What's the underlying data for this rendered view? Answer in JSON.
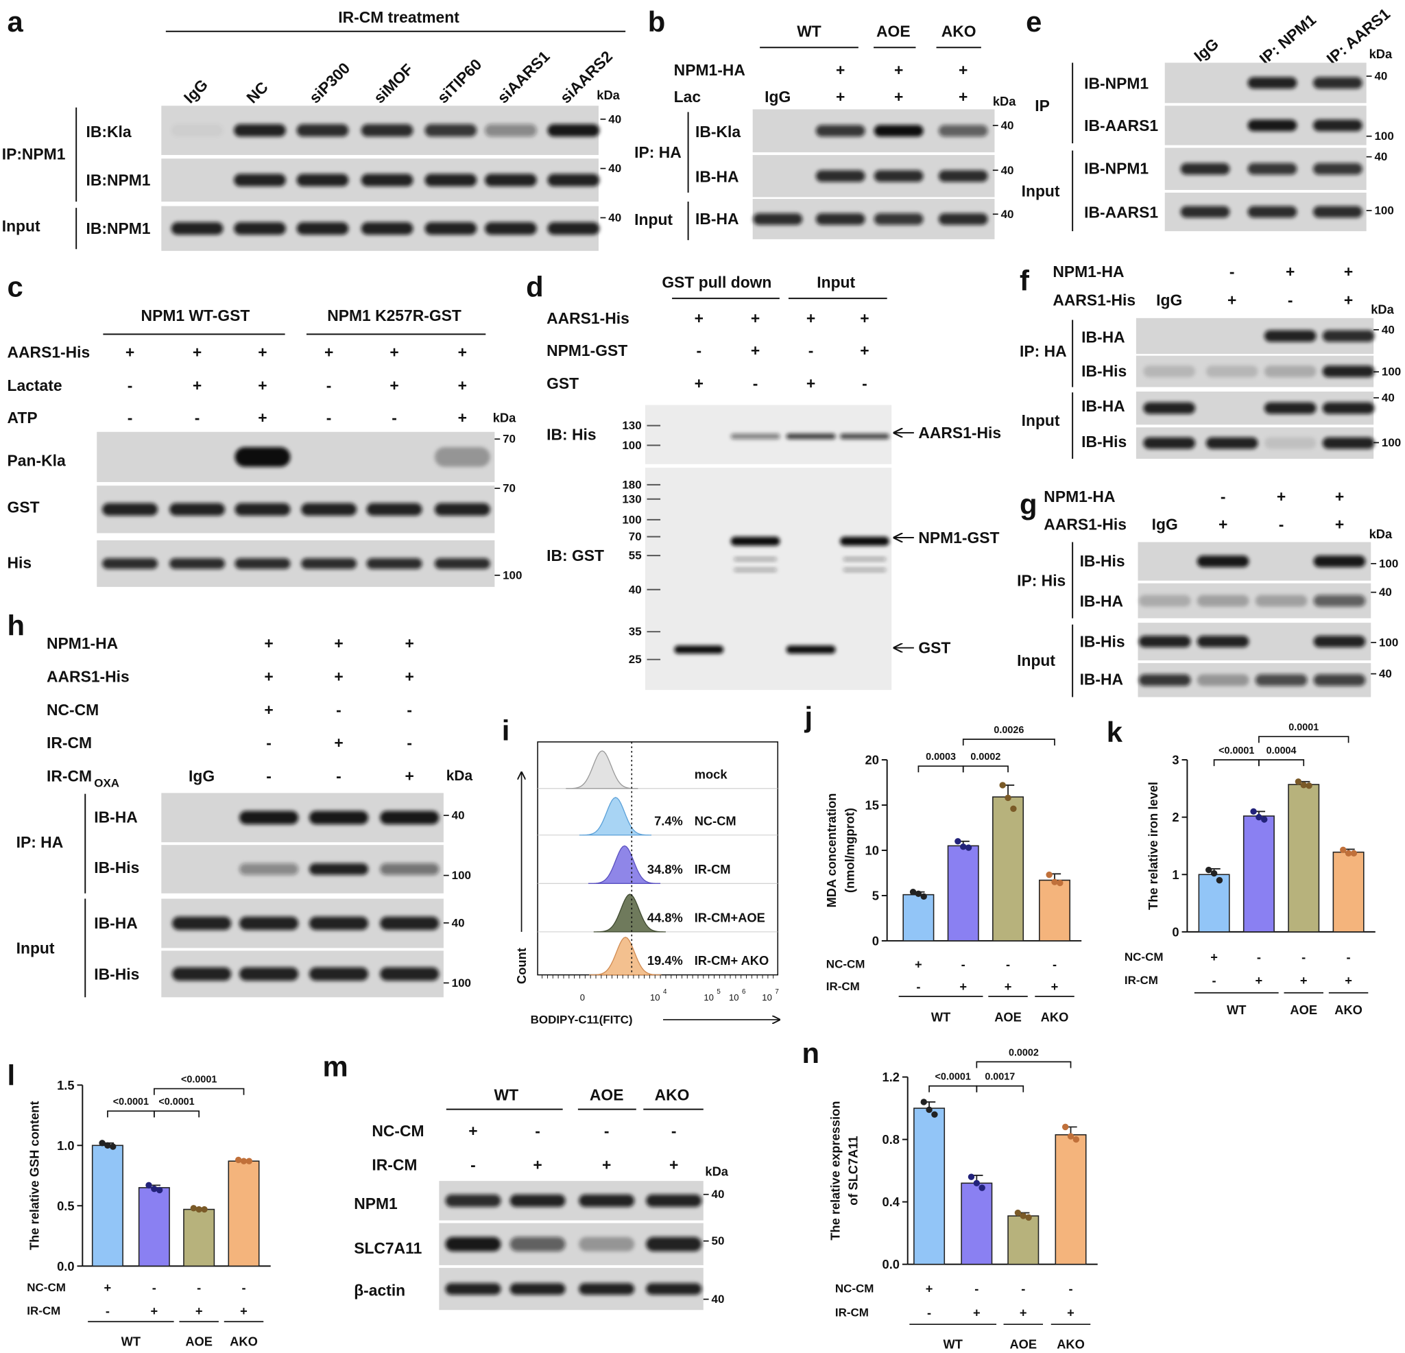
{
  "panels": {
    "a": {
      "letter": "a",
      "header": "IR-CM treatment",
      "lanes": [
        "IgG",
        "NC",
        "siP300",
        "siMOF",
        "siTIP60",
        "siAARS1",
        "siAARS2"
      ],
      "kda": "kDa",
      "ip": "IP:NPM1",
      "input": "Input",
      "rows": [
        "IB:Kla",
        "IB:NPM1",
        "IB:NPM1"
      ],
      "markers": [
        40,
        40,
        40
      ]
    },
    "b": {
      "letter": "b",
      "groups": [
        "WT",
        "AOE",
        "AKO"
      ],
      "conditions": [
        {
          "name": "NPM1-HA",
          "signs": [
            null,
            "+",
            "+",
            "+"
          ]
        },
        {
          "name": "Lac",
          "signs": [
            "IgG",
            "+",
            "+",
            "+"
          ]
        }
      ],
      "kda": "kDa",
      "ip": "IP: HA",
      "input": "Input",
      "rows": [
        "IB-Kla",
        "IB-HA",
        "IB-HA"
      ],
      "markers": [
        40,
        40,
        40
      ]
    },
    "e": {
      "letter": "e",
      "lanes": [
        "IgG",
        "IP: NPM1",
        "IP: AARS1"
      ],
      "kda": "kDa",
      "ip": "IP",
      "input": "Input",
      "rows": [
        "IB-NPM1",
        "IB-AARS1",
        "IB-NPM1",
        "IB-AARS1"
      ],
      "markers": [
        40,
        100,
        40,
        100
      ]
    },
    "c": {
      "letter": "c",
      "groups": [
        "NPM1 WT-GST",
        "NPM1 K257R-GST"
      ],
      "conditions": [
        {
          "name": "AARS1-His",
          "signs": [
            "+",
            "+",
            "+",
            "+",
            "+",
            "+"
          ]
        },
        {
          "name": "Lactate",
          "signs": [
            "-",
            "+",
            "+",
            "-",
            "+",
            "+"
          ]
        },
        {
          "name": "ATP",
          "signs": [
            "-",
            "-",
            "+",
            "-",
            "-",
            "+"
          ]
        }
      ],
      "kda": "kDa",
      "rows": [
        "Pan-Kla",
        "GST",
        "His"
      ],
      "markers": [
        70,
        70,
        100
      ]
    },
    "d": {
      "letter": "d",
      "groups": [
        "GST pull down",
        "Input"
      ],
      "conditions": [
        {
          "name": "AARS1-His",
          "signs": [
            "+",
            "+",
            "+",
            "+"
          ]
        },
        {
          "name": "NPM1-GST",
          "signs": [
            "-",
            "+",
            "-",
            "+"
          ]
        },
        {
          "name": "GST",
          "signs": [
            "+",
            "-",
            "+",
            "-"
          ]
        }
      ],
      "rows": [
        "IB: His",
        "IB: GST"
      ],
      "mw_his": [
        130,
        100
      ],
      "mw_gst": [
        180,
        130,
        100,
        70,
        55,
        40,
        35,
        25
      ],
      "arrows": [
        "AARS1-His",
        "NPM1-GST",
        "GST"
      ]
    },
    "f": {
      "letter": "f",
      "conditions": [
        {
          "name": "NPM1-HA",
          "signs": [
            null,
            "-",
            "+",
            "+"
          ]
        },
        {
          "name": "AARS1-His",
          "signs": [
            "IgG",
            "+",
            "-",
            "+"
          ]
        }
      ],
      "kda": "kDa",
      "ip": "IP: HA",
      "input": "Input",
      "rows": [
        "IB-HA",
        "IB-His",
        "IB-HA",
        "IB-His"
      ],
      "markers": [
        40,
        100,
        40,
        100
      ]
    },
    "g": {
      "letter": "g",
      "conditions": [
        {
          "name": "NPM1-HA",
          "signs": [
            null,
            "-",
            "+",
            "+"
          ]
        },
        {
          "name": "AARS1-His",
          "signs": [
            "IgG",
            "+",
            "-",
            "+"
          ]
        }
      ],
      "kda": "kDa",
      "ip": "IP: His",
      "input": "Input",
      "rows": [
        "IB-His",
        "IB-HA",
        "IB-His",
        "IB-HA"
      ],
      "markers": [
        100,
        40,
        100,
        40
      ]
    },
    "h": {
      "letter": "h",
      "conditions": [
        {
          "name": "NPM1-HA",
          "signs": [
            null,
            "+",
            "+",
            "+"
          ]
        },
        {
          "name": "AARS1-His",
          "signs": [
            null,
            "+",
            "+",
            "+"
          ]
        },
        {
          "name": "NC-CM",
          "signs": [
            null,
            "+",
            "-",
            "-"
          ]
        },
        {
          "name": "IR-CM",
          "signs": [
            null,
            "-",
            "+",
            "-"
          ]
        },
        {
          "name": "IR-CM",
          "sub": "OXA",
          "signs": [
            "IgG",
            "-",
            "-",
            "+"
          ]
        }
      ],
      "kda": "kDa",
      "ip": "IP: HA",
      "input": "Input",
      "rows": [
        "IB-HA",
        "IB-His",
        "IB-HA",
        "IB-His"
      ],
      "markers": [
        40,
        100,
        40,
        100
      ]
    },
    "m": {
      "letter": "m",
      "groups": [
        "WT",
        "AOE",
        "AKO"
      ],
      "conditions": [
        {
          "name": "NC-CM",
          "signs": [
            "+",
            "-",
            "-",
            "-"
          ]
        },
        {
          "name": "IR-CM",
          "signs": [
            "-",
            "+",
            "+",
            "+"
          ]
        }
      ],
      "kda": "kDa",
      "rows": [
        "NPM1",
        "SLC7A11",
        "β-actin"
      ],
      "markers": [
        40,
        50,
        40
      ]
    },
    "i": {
      "letter": "i",
      "samples": [
        {
          "name": "mock"
        },
        {
          "pct": "7.4%",
          "name": "NC-CM"
        },
        {
          "pct": "34.8%",
          "name": "IR-CM"
        },
        {
          "pct": "44.8%",
          "name": "IR-CM+AOE"
        },
        {
          "pct": "19.4%",
          "name": "IR-CM+ AKO"
        }
      ],
      "ylabel": "Count",
      "xlabel": "BODIPY-C11(FITC)",
      "xticks": [
        "0",
        {
          "base": "10",
          "exp": "4"
        },
        {
          "base": "10",
          "exp": "5"
        },
        {
          "base": "10",
          "exp": "6"
        },
        {
          "base": "10",
          "exp": "7"
        }
      ]
    }
  },
  "chart_data": [
    {
      "type": "bar",
      "letter": "j",
      "ylabel": [
        "MDA concentration",
        "(nmol/mgprot)"
      ],
      "values": [
        5.1,
        10.5,
        15.9,
        6.7
      ],
      "errors": [
        0.3,
        0.5,
        1.3,
        0.7
      ],
      "points": [
        [
          5.4,
          5.2,
          4.9
        ],
        [
          11.0,
          10.4,
          10.3
        ],
        [
          17.2,
          15.8,
          14.6
        ],
        [
          7.3,
          6.5,
          6.4
        ]
      ],
      "colors": [
        "#92c5f7",
        "#8a80f2",
        "#b7b27c",
        "#f4b47c"
      ],
      "point_colors": [
        "#222222",
        "#22227a",
        "#7a5a28",
        "#c0703a"
      ],
      "ylim": [
        0,
        20
      ],
      "yticks": [
        0,
        5,
        10,
        15,
        20
      ],
      "comparisons": [
        {
          "pair": [
            0,
            1
          ],
          "label": "0.0003"
        },
        {
          "pair": [
            1,
            2
          ],
          "label": "0.0002"
        },
        {
          "pair": [
            1,
            3
          ],
          "label": "0.0026"
        }
      ],
      "conditions": [
        {
          "name": "NC-CM",
          "signs": [
            "+",
            "-",
            "-",
            "-"
          ]
        },
        {
          "name": "IR-CM",
          "signs": [
            "-",
            "+",
            "+",
            "+"
          ]
        }
      ],
      "groups": [
        {
          "label": "WT",
          "span": [
            0,
            1
          ]
        },
        {
          "label": "AOE",
          "span": [
            2,
            2
          ]
        },
        {
          "label": "AKO",
          "span": [
            3,
            3
          ]
        }
      ]
    },
    {
      "type": "bar",
      "letter": "k",
      "ylabel": [
        "The relative iron level"
      ],
      "values": [
        1.0,
        2.02,
        2.57,
        1.39
      ],
      "errors": [
        0.1,
        0.08,
        0.05,
        0.05
      ],
      "points": [
        [
          1.08,
          1.02,
          0.9
        ],
        [
          2.1,
          2.0,
          1.96
        ],
        [
          2.62,
          2.56,
          2.55
        ],
        [
          1.43,
          1.37,
          1.37
        ]
      ],
      "colors": [
        "#92c5f7",
        "#8a80f2",
        "#b7b27c",
        "#f4b47c"
      ],
      "point_colors": [
        "#222222",
        "#22227a",
        "#7a5a28",
        "#c0703a"
      ],
      "ylim": [
        0,
        3
      ],
      "yticks": [
        0,
        1,
        2,
        3
      ],
      "comparisons": [
        {
          "pair": [
            0,
            1
          ],
          "label": "<0.0001"
        },
        {
          "pair": [
            1,
            2
          ],
          "label": "0.0004"
        },
        {
          "pair": [
            1,
            3
          ],
          "label": "0.0001"
        }
      ],
      "conditions": [
        {
          "name": "NC-CM",
          "signs": [
            "+",
            "-",
            "-",
            "-"
          ]
        },
        {
          "name": "IR-CM",
          "signs": [
            "-",
            "+",
            "+",
            "+"
          ]
        }
      ],
      "groups": [
        {
          "label": "WT",
          "span": [
            0,
            1
          ]
        },
        {
          "label": "AOE",
          "span": [
            2,
            2
          ]
        },
        {
          "label": "AKO",
          "span": [
            3,
            3
          ]
        }
      ]
    },
    {
      "type": "bar",
      "letter": "l",
      "ylabel": [
        "The relative GSH content"
      ],
      "values": [
        1.0,
        0.65,
        0.47,
        0.87
      ],
      "errors": [
        0.02,
        0.02,
        0.01,
        0.01
      ],
      "points": [
        [
          1.02,
          1.0,
          0.99
        ],
        [
          0.67,
          0.64,
          0.63
        ],
        [
          0.48,
          0.47,
          0.47
        ],
        [
          0.88,
          0.87,
          0.87
        ]
      ],
      "colors": [
        "#92c5f7",
        "#8a80f2",
        "#b7b27c",
        "#f4b47c"
      ],
      "point_colors": [
        "#222222",
        "#22227a",
        "#7a5a28",
        "#c0703a"
      ],
      "ylim": [
        0,
        1.5
      ],
      "yticks": [
        {
          "value": 0,
          "label": "0.0"
        },
        0.5,
        {
          "value": 1,
          "label": "1.0"
        },
        1.5
      ],
      "comparisons": [
        {
          "pair": [
            0,
            1
          ],
          "label": "<0.0001"
        },
        {
          "pair": [
            1,
            2
          ],
          "label": "<0.0001"
        },
        {
          "pair": [
            1,
            3
          ],
          "label": "<0.0001"
        }
      ],
      "conditions": [
        {
          "name": "NC-CM",
          "signs": [
            "+",
            "-",
            "-",
            "-"
          ]
        },
        {
          "name": "IR-CM",
          "signs": [
            "-",
            "+",
            "+",
            "+"
          ]
        }
      ],
      "groups": [
        {
          "label": "WT",
          "span": [
            0,
            1
          ]
        },
        {
          "label": "AOE",
          "span": [
            2,
            2
          ]
        },
        {
          "label": "AKO",
          "span": [
            3,
            3
          ]
        }
      ]
    },
    {
      "type": "bar",
      "letter": "n",
      "ylabel": [
        "The relative expression",
        "of SLC7A11"
      ],
      "values": [
        1.0,
        0.52,
        0.31,
        0.83
      ],
      "errors": [
        0.04,
        0.05,
        0.02,
        0.05
      ],
      "points": [
        [
          1.04,
          0.99,
          0.96
        ],
        [
          0.56,
          0.52,
          0.49
        ],
        [
          0.33,
          0.31,
          0.3
        ],
        [
          0.88,
          0.82,
          0.8
        ]
      ],
      "colors": [
        "#92c5f7",
        "#8a80f2",
        "#b7b27c",
        "#f4b47c"
      ],
      "point_colors": [
        "#222222",
        "#22227a",
        "#7a5a28",
        "#c0703a"
      ],
      "ylim": [
        0,
        1.2
      ],
      "yticks": [
        {
          "value": 0,
          "label": "0.0"
        },
        0.4,
        0.8,
        1.2
      ],
      "comparisons": [
        {
          "pair": [
            0,
            1
          ],
          "label": "<0.0001"
        },
        {
          "pair": [
            1,
            2
          ],
          "label": "0.0017"
        },
        {
          "pair": [
            1,
            3
          ],
          "label": "0.0002"
        }
      ],
      "conditions": [
        {
          "name": "NC-CM",
          "signs": [
            "+",
            "-",
            "-",
            "-"
          ]
        },
        {
          "name": "IR-CM",
          "signs": [
            "-",
            "+",
            "+",
            "+"
          ]
        }
      ],
      "groups": [
        {
          "label": "WT",
          "span": [
            0,
            1
          ]
        },
        {
          "label": "AOE",
          "span": [
            2,
            2
          ]
        },
        {
          "label": "AKO",
          "span": [
            3,
            3
          ]
        }
      ]
    }
  ]
}
